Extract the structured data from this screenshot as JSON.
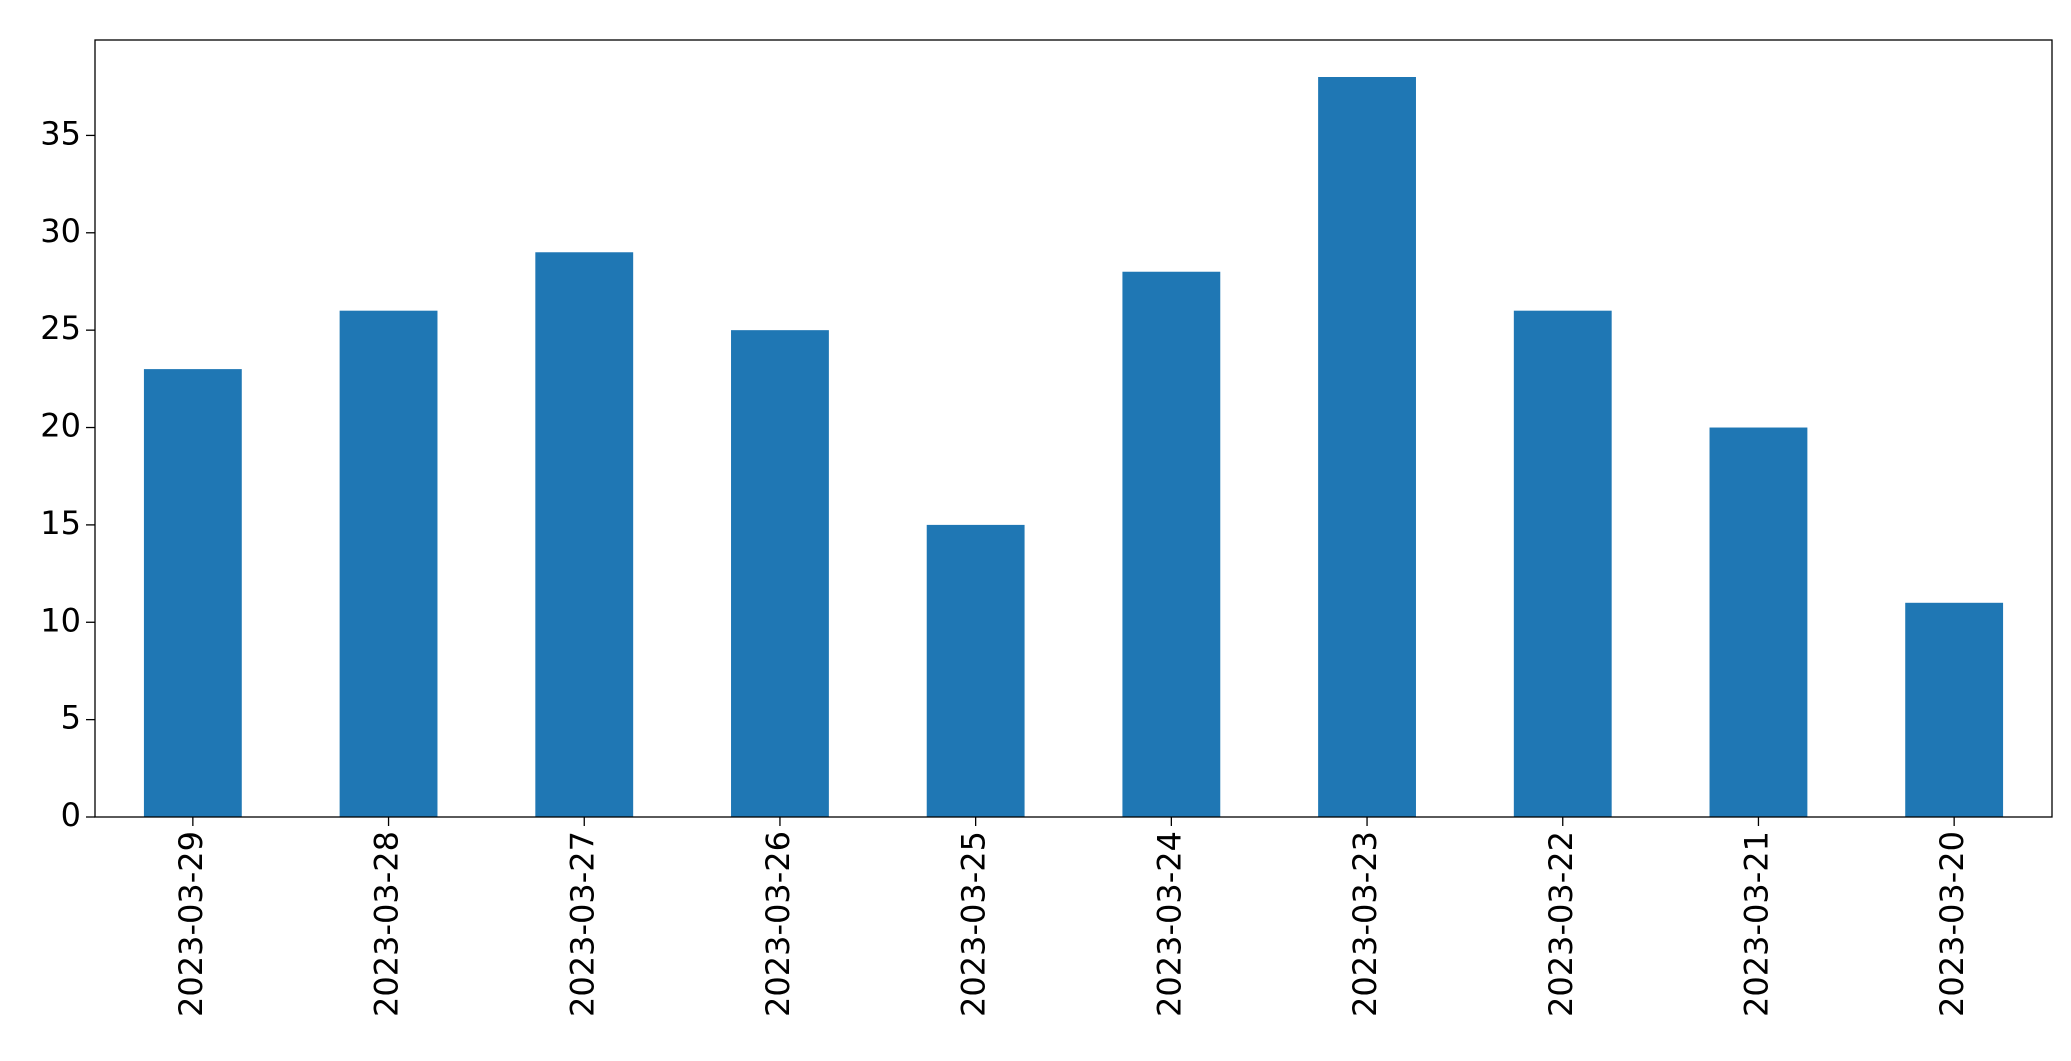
{
  "chart_data": {
    "type": "bar",
    "categories": [
      "2023-03-29",
      "2023-03-28",
      "2023-03-27",
      "2023-03-26",
      "2023-03-25",
      "2023-03-24",
      "2023-03-23",
      "2023-03-22",
      "2023-03-21",
      "2023-03-20"
    ],
    "values": [
      23,
      26,
      29,
      25,
      15,
      28,
      38,
      26,
      20,
      11
    ],
    "color": "#1f77b4",
    "ylim": [
      0,
      39.9
    ],
    "yticks": [
      0,
      5,
      10,
      15,
      20,
      25,
      30,
      35
    ],
    "grid": false
  }
}
